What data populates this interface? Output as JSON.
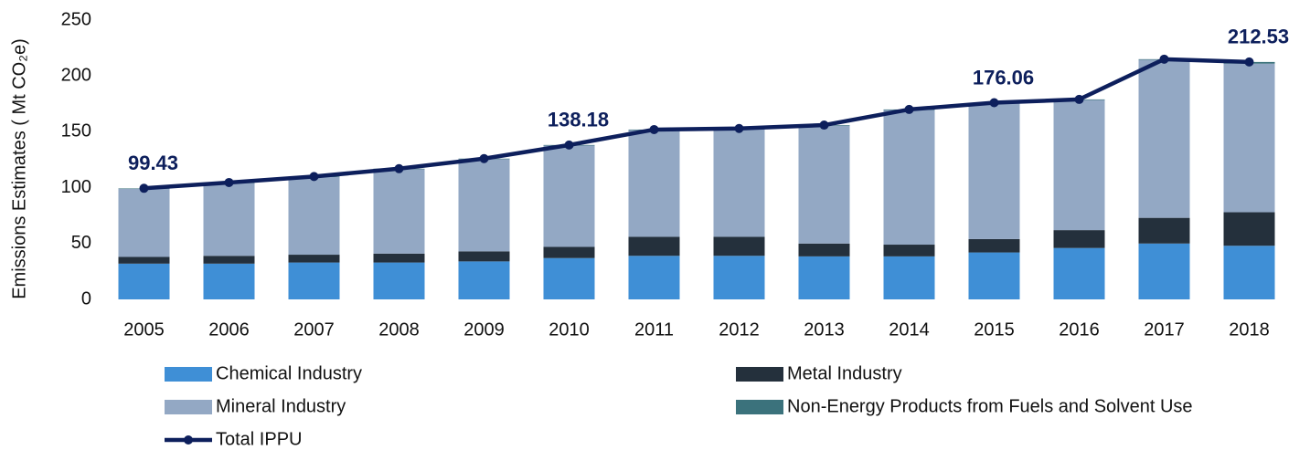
{
  "chart_data": {
    "type": "bar",
    "stacked": true,
    "y_label": "Emissions Estimates ( Mt CO₂e)",
    "categories": [
      "2005",
      "2006",
      "2007",
      "2008",
      "2009",
      "2010",
      "2011",
      "2012",
      "2013",
      "2014",
      "2015",
      "2016",
      "2017",
      "2018"
    ],
    "ylim": [
      0,
      250
    ],
    "yticks": [
      0,
      50,
      100,
      150,
      200,
      250
    ],
    "grid": false,
    "series": [
      {
        "name": "Chemical Industry",
        "color": "#3f8fd6",
        "values": [
          32,
          32,
          33,
          33,
          34,
          37,
          39,
          39,
          38.5,
          38.5,
          42,
          46,
          50,
          48
        ]
      },
      {
        "name": "Metal Industry",
        "color": "#24303c",
        "values": [
          6,
          7,
          7,
          8,
          9,
          10,
          17,
          17,
          11.5,
          10.5,
          12,
          16,
          23,
          30
        ]
      },
      {
        "name": "Mineral Industry",
        "color": "#93a8c4",
        "values": [
          61,
          65,
          69.5,
          75.5,
          82.5,
          90.7,
          95.5,
          96.5,
          105.5,
          120.5,
          121.5,
          116.5,
          141.5,
          133
        ]
      },
      {
        "name": "Non-Energy Products from Fuels and Solvent Use",
        "color": "#3b727c",
        "values": [
          0.4,
          0.5,
          0.5,
          0.5,
          0.5,
          0.5,
          0.5,
          0.5,
          0.5,
          0.5,
          0.56,
          0.5,
          0.5,
          1.5
        ]
      },
      {
        "name": "Total IPPU",
        "type": "line",
        "color": "#0d1f5c",
        "values": [
          99.43,
          104.6,
          110,
          117,
          126,
          138.18,
          152,
          153,
          156,
          170,
          176.06,
          179,
          215,
          212.53
        ],
        "value_labels": [
          "99.43",
          null,
          null,
          null,
          null,
          "138.18",
          null,
          null,
          null,
          null,
          "176.06",
          null,
          null,
          "212.53"
        ]
      }
    ]
  }
}
